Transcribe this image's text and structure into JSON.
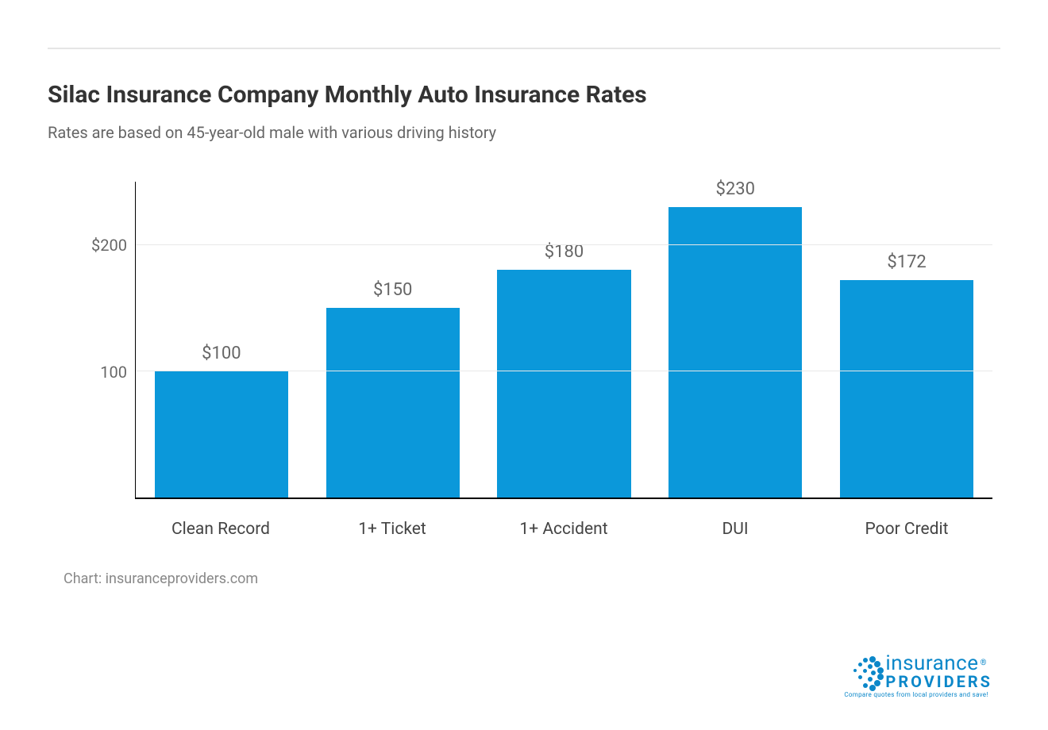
{
  "chart": {
    "type": "bar",
    "title": "Silac Insurance Company Monthly Auto Insurance Rates",
    "title_fontsize": 30,
    "title_color": "#333333",
    "subtitle": "Rates are based on 45-year-old male with various driving history",
    "subtitle_fontsize": 20,
    "subtitle_color": "#666666",
    "categories": [
      "Clean Record",
      "1+ Ticket",
      "1+ Accident",
      "DUI",
      "Poor Credit"
    ],
    "values": [
      100,
      150,
      180,
      230,
      172
    ],
    "value_labels": [
      "$100",
      "$150",
      "$180",
      "$230",
      "$172"
    ],
    "bar_color": "#0b98da",
    "bar_width_pct": 78,
    "ylim": [
      0,
      250
    ],
    "yticks": [
      {
        "value": 100,
        "label": "100"
      },
      {
        "value": 200,
        "label": "$200"
      }
    ],
    "grid_color": "#e8e8e8",
    "axis_color": "#000000",
    "background_color": "#ffffff",
    "xlabel_fontsize": 21,
    "xlabel_color": "#444444",
    "value_label_fontsize": 22,
    "value_label_color": "#666666",
    "ytick_fontsize": 20,
    "ytick_color": "#666666"
  },
  "credit": "Chart: insuranceproviders.com",
  "credit_color": "#888888",
  "credit_fontsize": 18,
  "logo": {
    "word1": "insurance",
    "word2": "PROVIDERS",
    "tagline": "Compare quotes from local providers and save!",
    "reg": "®",
    "color": "#0b87c9"
  }
}
